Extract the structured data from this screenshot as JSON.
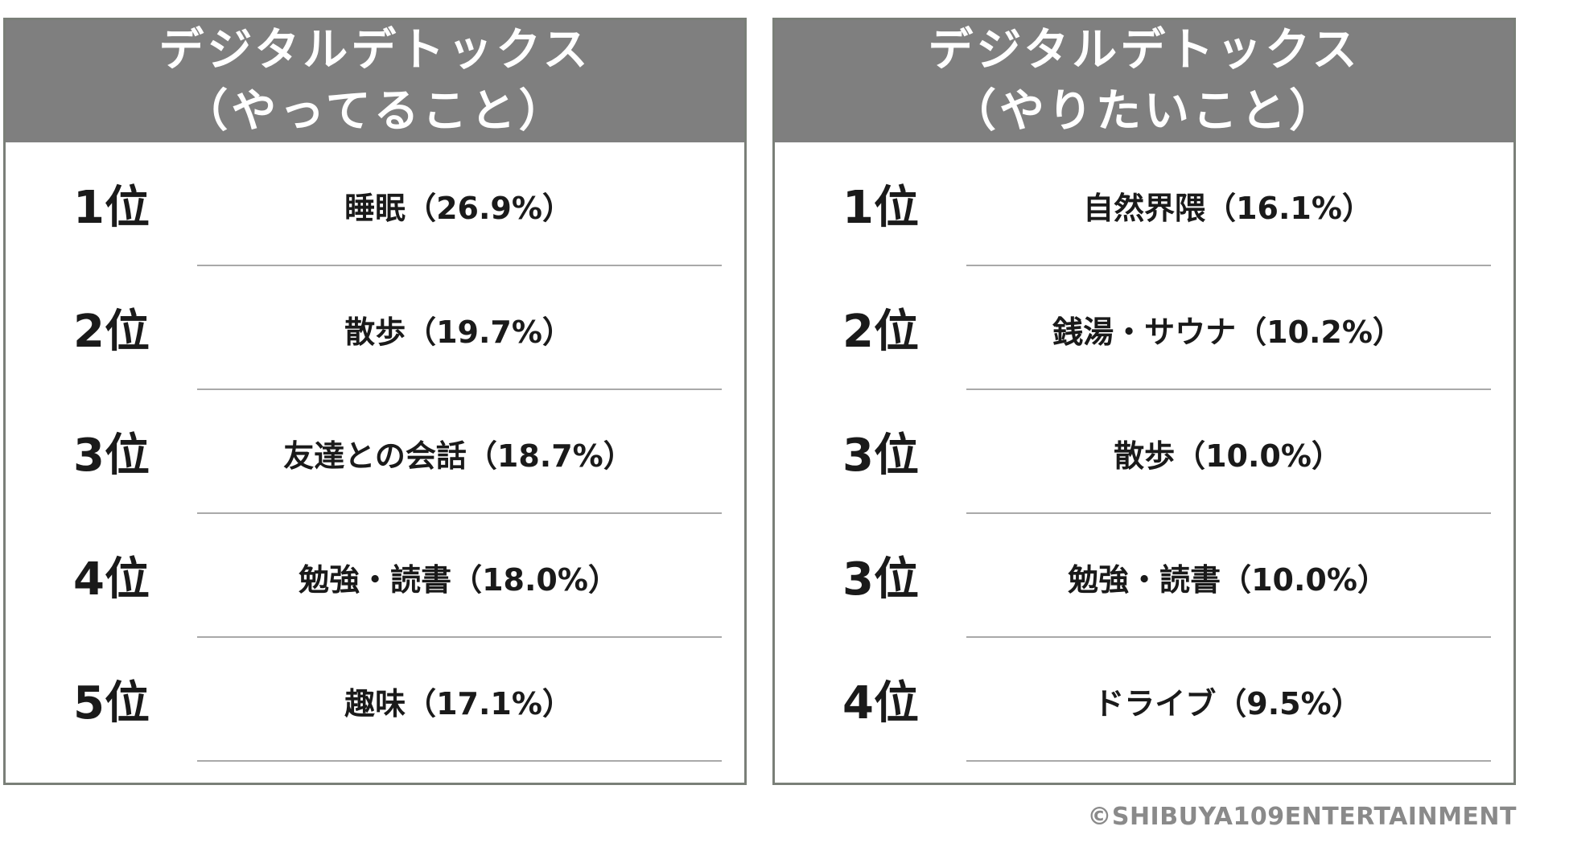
{
  "panels": [
    {
      "title_line1": "デジタルデトックス",
      "title_line2": "（やってること）",
      "rows": [
        {
          "rank": "1位",
          "item": "睡眠（26.9%）"
        },
        {
          "rank": "2位",
          "item": "散歩（19.7%）"
        },
        {
          "rank": "3位",
          "item": "友達との会話（18.7%）"
        },
        {
          "rank": "4位",
          "item": "勉強・読書（18.0%）"
        },
        {
          "rank": "5位",
          "item": "趣味（17.1%）"
        }
      ]
    },
    {
      "title_line1": "デジタルデトックス",
      "title_line2": "（やりたいこと）",
      "rows": [
        {
          "rank": "1位",
          "item": "自然界隈（16.1%）"
        },
        {
          "rank": "2位",
          "item": "銭湯・サウナ（10.2%）"
        },
        {
          "rank": "3位",
          "item": "散歩（10.0%）"
        },
        {
          "rank": "3位",
          "item": "勉強・読書（10.0%）"
        },
        {
          "rank": "4位",
          "item": "ドライブ（9.5%）"
        }
      ]
    }
  ],
  "copyright": "©SHIBUYA109ENTERTAINMENT",
  "colors": {
    "header_bg": "#7f7f7f",
    "panel_border": "#7a7f78",
    "divider": "#a9a9a9",
    "copyright_text": "#8a8a8a"
  }
}
